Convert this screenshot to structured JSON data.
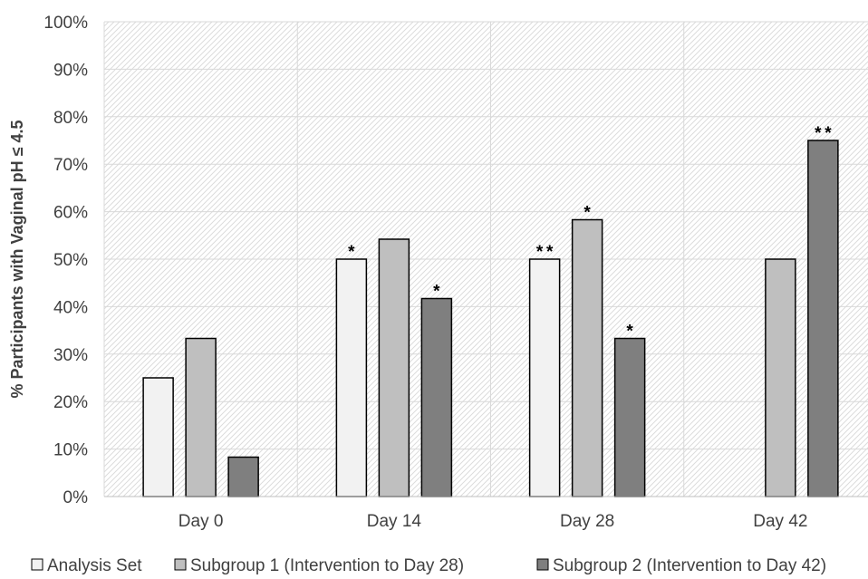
{
  "chart_data": {
    "type": "bar",
    "title": "",
    "xlabel": "",
    "ylabel": "% Participants with Vaginal pH ≤ 4.5",
    "ylim": [
      0,
      100
    ],
    "yticks": [
      "0%",
      "10%",
      "20%",
      "30%",
      "40%",
      "50%",
      "60%",
      "70%",
      "80%",
      "90%",
      "100%"
    ],
    "grid": true,
    "legend_position": "bottom",
    "categories": [
      "Day 0",
      "Day 14",
      "Day 28",
      "Day 42"
    ],
    "series": [
      {
        "name": "Analysis Set",
        "color": "#f2f2f2",
        "values": [
          25,
          50,
          50,
          null
        ],
        "annotations": [
          "",
          "*",
          "**",
          ""
        ]
      },
      {
        "name": "Subgroup 1 (Intervention to Day 28)",
        "color": "#bfbfbf",
        "values": [
          33.3,
          54.2,
          58.3,
          50
        ],
        "annotations": [
          "",
          "",
          "*",
          ""
        ]
      },
      {
        "name": "Subgroup 2 (Intervention to Day 42)",
        "color": "#7f7f7f",
        "values": [
          8.3,
          41.7,
          33.3,
          75
        ],
        "annotations": [
          "",
          "*",
          "*",
          "**"
        ]
      }
    ]
  }
}
